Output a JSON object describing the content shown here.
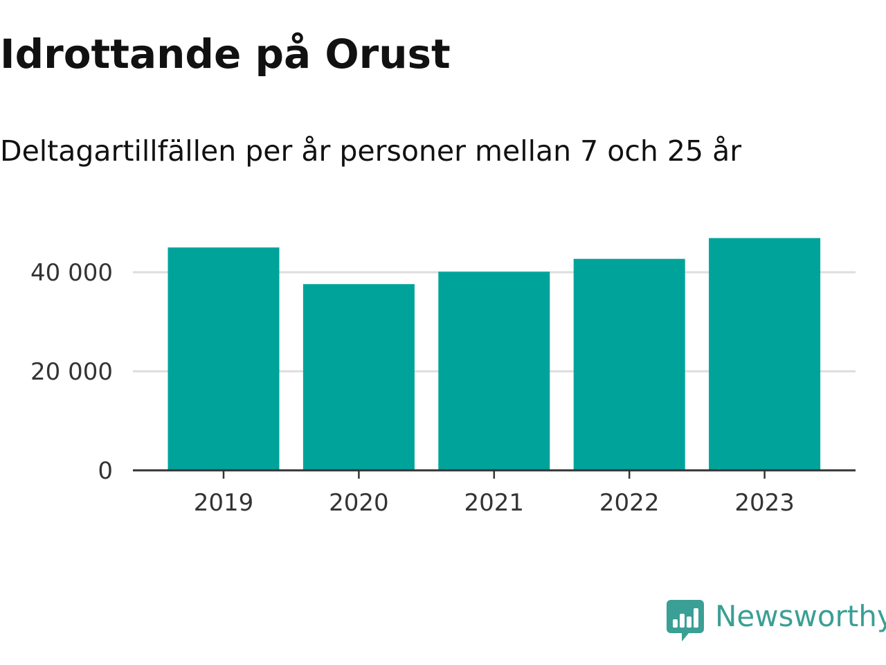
{
  "title": "Idrottande på Orust",
  "subtitle": "Deltagartillfällen per år personer mellan 7 och 25 år",
  "brand": {
    "name": "Newsworthy",
    "icon": "newsworthy-logo-icon",
    "color": "#3a9f95"
  },
  "colors": {
    "bar": "#00a39a",
    "grid": "#dddddd",
    "axis": "#333333"
  },
  "chart_data": {
    "type": "bar",
    "title": "Idrottande på Orust",
    "subtitle": "Deltagartillfällen per år personer mellan 7 och 25 år",
    "categories": [
      "2019",
      "2020",
      "2021",
      "2022",
      "2023"
    ],
    "values": [
      45000,
      37600,
      40100,
      42700,
      46900
    ],
    "xlabel": "",
    "ylabel": "",
    "ylim": [
      0,
      48000
    ],
    "yticks": [
      0,
      20000,
      40000
    ],
    "ytick_labels": [
      "0",
      "20 000",
      "40 000"
    ],
    "grid": true,
    "legend": "none"
  }
}
